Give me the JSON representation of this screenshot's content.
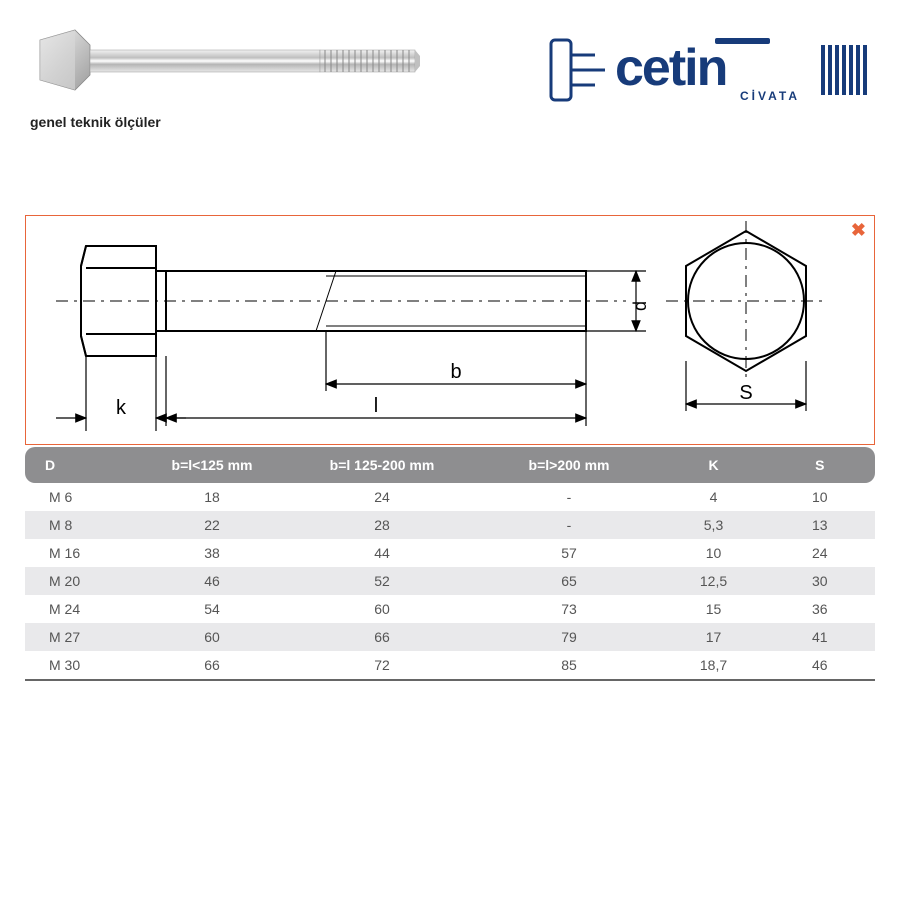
{
  "caption": "genel teknik ölçüler",
  "logo": {
    "text_main": "cetin",
    "text_sub": "CİVATA",
    "color": "#173b7a"
  },
  "close_icon": "✖",
  "diagram": {
    "border_color": "#e8653a",
    "labels": {
      "k": "k",
      "l": "l",
      "b": "b",
      "d": "d",
      "s": "S"
    }
  },
  "table": {
    "header_bg": "#8e8e90",
    "header_fg": "#ffffff",
    "row_alt_bg": "#e9e9eb",
    "columns": [
      "D",
      "b=l<125 mm",
      "b=l 125-200 mm",
      "b=l>200 mm",
      "K",
      "S"
    ],
    "rows": [
      [
        "M 6",
        "18",
        "24",
        "-",
        "4",
        "10"
      ],
      [
        "M 8",
        "22",
        "28",
        "-",
        "5,3",
        "13"
      ],
      [
        "M 16",
        "38",
        "44",
        "57",
        "10",
        "24"
      ],
      [
        "M 20",
        "46",
        "52",
        "65",
        "12,5",
        "30"
      ],
      [
        "M 24",
        "54",
        "60",
        "73",
        "15",
        "36"
      ],
      [
        "M 27",
        "60",
        "66",
        "79",
        "17",
        "41"
      ],
      [
        "M 30",
        "66",
        "72",
        "85",
        "18,7",
        "46"
      ]
    ],
    "alt_row_indices": [
      1,
      3,
      5
    ]
  }
}
